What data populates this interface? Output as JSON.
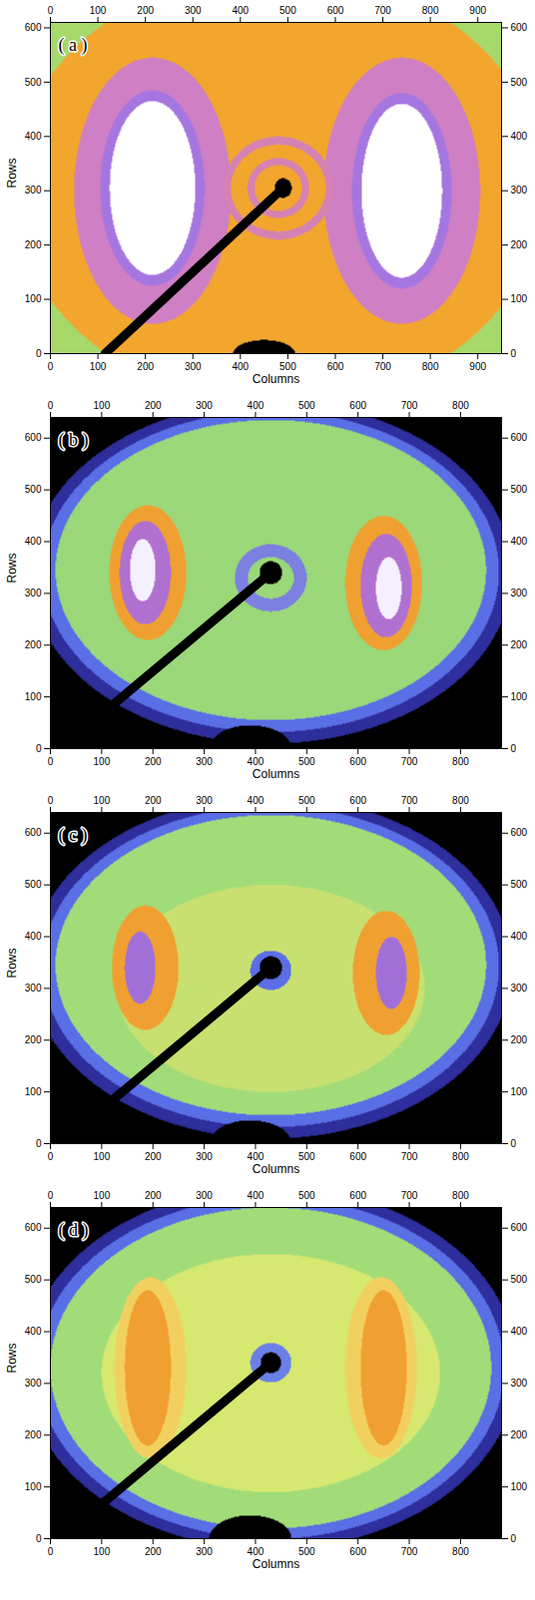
{
  "chart_data": [
    {
      "type": "heatmap",
      "title": "( a )",
      "xlabel": "Columns",
      "ylabel": "Rows",
      "xlim": [
        0,
        950
      ],
      "ylim": [
        0,
        610
      ],
      "xticks": [
        0,
        100,
        200,
        300,
        400,
        500,
        600,
        700,
        800,
        900
      ],
      "yticks": [
        0,
        100,
        200,
        300,
        400,
        500,
        600
      ],
      "features": [
        {
          "shape": "rect",
          "x1": 0,
          "x2": 950,
          "y1": 0,
          "y2": 610,
          "color": "#a6d86a"
        },
        {
          "shape": "ellipse",
          "cx": 480,
          "cy": 305,
          "rx": 560,
          "ry": 400,
          "color": "#f2a62e"
        },
        {
          "shape": "ellipse",
          "cx": 215,
          "cy": 300,
          "rx": 165,
          "ry": 245,
          "color": "#cf7fc4"
        },
        {
          "shape": "ellipse",
          "cx": 740,
          "cy": 300,
          "rx": 165,
          "ry": 245,
          "color": "#cf7fc4"
        },
        {
          "shape": "ellipse",
          "cx": 215,
          "cy": 305,
          "rx": 110,
          "ry": 180,
          "color": "#a676e0"
        },
        {
          "shape": "ellipse",
          "cx": 740,
          "cy": 300,
          "rx": 105,
          "ry": 180,
          "color": "#a676e0"
        },
        {
          "shape": "ellipse",
          "cx": 215,
          "cy": 305,
          "rx": 90,
          "ry": 160,
          "color": "#ffffff"
        },
        {
          "shape": "ellipse",
          "cx": 740,
          "cy": 300,
          "rx": 85,
          "ry": 160,
          "color": "#ffffff"
        },
        {
          "shape": "ellipse",
          "cx": 480,
          "cy": 305,
          "rx": 115,
          "ry": 95,
          "color": "#d582b4"
        },
        {
          "shape": "ellipse",
          "cx": 480,
          "cy": 305,
          "rx": 100,
          "ry": 80,
          "color": "#f2a62e"
        },
        {
          "shape": "ellipse",
          "cx": 480,
          "cy": 305,
          "rx": 65,
          "ry": 55,
          "color": "#d582b4"
        },
        {
          "shape": "ellipse",
          "cx": 480,
          "cy": 305,
          "rx": 50,
          "ry": 42,
          "color": "#f2a62e"
        },
        {
          "shape": "ellipse",
          "cx": 490,
          "cy": 305,
          "rx": 18,
          "ry": 18,
          "color": "#000000"
        },
        {
          "shape": "ellipse",
          "cx": 450,
          "cy": 0,
          "rx": 65,
          "ry": 25,
          "color": "#000000"
        },
        {
          "shape": "line",
          "x1": 490,
          "y1": 305,
          "x2": 115,
          "y2": 0,
          "color": "#000000"
        }
      ]
    },
    {
      "type": "heatmap",
      "title": "( b )",
      "xlabel": "Columns",
      "ylabel": "Rows",
      "xlim": [
        0,
        880
      ],
      "ylim": [
        0,
        640
      ],
      "xticks": [
        0,
        100,
        200,
        300,
        400,
        500,
        600,
        700,
        800
      ],
      "yticks": [
        0,
        100,
        200,
        300,
        400,
        500,
        600
      ],
      "features": [
        {
          "shape": "rect",
          "x1": 0,
          "x2": 880,
          "y1": 0,
          "y2": 640,
          "color": "#000000"
        },
        {
          "shape": "ellipse",
          "cx": 430,
          "cy": 340,
          "rx": 470,
          "ry": 330,
          "color": "#2e2e9c"
        },
        {
          "shape": "ellipse",
          "cx": 430,
          "cy": 342,
          "rx": 445,
          "ry": 310,
          "color": "#5a6ee6"
        },
        {
          "shape": "ellipse",
          "cx": 430,
          "cy": 345,
          "rx": 420,
          "ry": 290,
          "color": "#9ad87a"
        },
        {
          "shape": "ellipse",
          "cx": 190,
          "cy": 340,
          "rx": 75,
          "ry": 130,
          "color": "#f0a030"
        },
        {
          "shape": "ellipse",
          "cx": 650,
          "cy": 320,
          "rx": 75,
          "ry": 130,
          "color": "#f0a030"
        },
        {
          "shape": "ellipse",
          "cx": 185,
          "cy": 340,
          "rx": 50,
          "ry": 100,
          "color": "#b070d0"
        },
        {
          "shape": "ellipse",
          "cx": 655,
          "cy": 315,
          "rx": 50,
          "ry": 100,
          "color": "#b070d0"
        },
        {
          "shape": "ellipse",
          "cx": 180,
          "cy": 345,
          "rx": 25,
          "ry": 60,
          "color": "#f4f0ff"
        },
        {
          "shape": "ellipse",
          "cx": 660,
          "cy": 310,
          "rx": 25,
          "ry": 60,
          "color": "#f4f0ff"
        },
        {
          "shape": "ellipse",
          "cx": 430,
          "cy": 330,
          "rx": 70,
          "ry": 65,
          "color": "#7c80e0"
        },
        {
          "shape": "ellipse",
          "cx": 430,
          "cy": 330,
          "rx": 45,
          "ry": 40,
          "color": "#9ad87a"
        },
        {
          "shape": "ellipse",
          "cx": 430,
          "cy": 340,
          "rx": 22,
          "ry": 22,
          "color": "#000000"
        },
        {
          "shape": "ellipse",
          "cx": 390,
          "cy": 0,
          "rx": 80,
          "ry": 45,
          "color": "#000000"
        },
        {
          "shape": "line",
          "x1": 430,
          "y1": 340,
          "x2": 80,
          "y2": 50,
          "color": "#000000"
        }
      ]
    },
    {
      "type": "heatmap",
      "title": "( c )",
      "xlabel": "Columns",
      "ylabel": "Rows",
      "xlim": [
        0,
        880
      ],
      "ylim": [
        0,
        640
      ],
      "xticks": [
        0,
        100,
        200,
        300,
        400,
        500,
        600,
        700,
        800
      ],
      "yticks": [
        0,
        100,
        200,
        300,
        400,
        500,
        600
      ],
      "features": [
        {
          "shape": "rect",
          "x1": 0,
          "x2": 880,
          "y1": 0,
          "y2": 640,
          "color": "#000000"
        },
        {
          "shape": "ellipse",
          "cx": 430,
          "cy": 340,
          "rx": 470,
          "ry": 330,
          "color": "#2e2e9c"
        },
        {
          "shape": "ellipse",
          "cx": 430,
          "cy": 342,
          "rx": 445,
          "ry": 310,
          "color": "#5a6ee6"
        },
        {
          "shape": "ellipse",
          "cx": 430,
          "cy": 345,
          "rx": 420,
          "ry": 290,
          "color": "#a2dc78"
        },
        {
          "shape": "ellipse",
          "cx": 430,
          "cy": 300,
          "rx": 300,
          "ry": 200,
          "color": "#c8e070"
        },
        {
          "shape": "ellipse",
          "cx": 185,
          "cy": 340,
          "rx": 65,
          "ry": 120,
          "color": "#f0a030"
        },
        {
          "shape": "ellipse",
          "cx": 655,
          "cy": 330,
          "rx": 65,
          "ry": 120,
          "color": "#f0a030"
        },
        {
          "shape": "ellipse",
          "cx": 175,
          "cy": 340,
          "rx": 30,
          "ry": 70,
          "color": "#a070d8"
        },
        {
          "shape": "ellipse",
          "cx": 665,
          "cy": 330,
          "rx": 30,
          "ry": 70,
          "color": "#a070d8"
        },
        {
          "shape": "ellipse",
          "cx": 430,
          "cy": 335,
          "rx": 40,
          "ry": 38,
          "color": "#5a6ee6"
        },
        {
          "shape": "ellipse",
          "cx": 430,
          "cy": 340,
          "rx": 22,
          "ry": 22,
          "color": "#000000"
        },
        {
          "shape": "ellipse",
          "cx": 390,
          "cy": 0,
          "rx": 80,
          "ry": 45,
          "color": "#000000"
        },
        {
          "shape": "line",
          "x1": 430,
          "y1": 340,
          "x2": 80,
          "y2": 50,
          "color": "#000000"
        }
      ]
    },
    {
      "type": "heatmap",
      "title": "( d )",
      "xlabel": "Columns",
      "ylabel": "Rows",
      "xlim": [
        0,
        880
      ],
      "ylim": [
        0,
        640
      ],
      "xticks": [
        0,
        100,
        200,
        300,
        400,
        500,
        600,
        700,
        800
      ],
      "yticks": [
        0,
        100,
        200,
        300,
        400,
        500,
        600
      ],
      "features": [
        {
          "shape": "rect",
          "x1": 0,
          "x2": 880,
          "y1": 0,
          "y2": 640,
          "color": "#000000"
        },
        {
          "shape": "ellipse",
          "cx": 430,
          "cy": 330,
          "rx": 480,
          "ry": 350,
          "color": "#2e2e9c"
        },
        {
          "shape": "ellipse",
          "cx": 430,
          "cy": 330,
          "rx": 455,
          "ry": 330,
          "color": "#5a6ee6"
        },
        {
          "shape": "ellipse",
          "cx": 430,
          "cy": 330,
          "rx": 430,
          "ry": 310,
          "color": "#a2dc78"
        },
        {
          "shape": "ellipse",
          "cx": 430,
          "cy": 320,
          "rx": 330,
          "ry": 230,
          "color": "#d6e870"
        },
        {
          "shape": "ellipse",
          "cx": 195,
          "cy": 330,
          "rx": 70,
          "ry": 175,
          "color": "#f2d060"
        },
        {
          "shape": "ellipse",
          "cx": 645,
          "cy": 330,
          "rx": 70,
          "ry": 175,
          "color": "#f2d060"
        },
        {
          "shape": "ellipse",
          "cx": 190,
          "cy": 330,
          "rx": 45,
          "ry": 150,
          "color": "#f0a030"
        },
        {
          "shape": "ellipse",
          "cx": 650,
          "cy": 330,
          "rx": 45,
          "ry": 150,
          "color": "#f0a030"
        },
        {
          "shape": "ellipse",
          "cx": 430,
          "cy": 340,
          "rx": 40,
          "ry": 38,
          "color": "#6a80e6"
        },
        {
          "shape": "ellipse",
          "cx": 430,
          "cy": 340,
          "rx": 20,
          "ry": 20,
          "color": "#000000"
        },
        {
          "shape": "ellipse",
          "cx": 390,
          "cy": 0,
          "rx": 80,
          "ry": 45,
          "color": "#000000"
        },
        {
          "shape": "line",
          "x1": 430,
          "y1": 340,
          "x2": 80,
          "y2": 50,
          "color": "#000000"
        }
      ]
    }
  ]
}
